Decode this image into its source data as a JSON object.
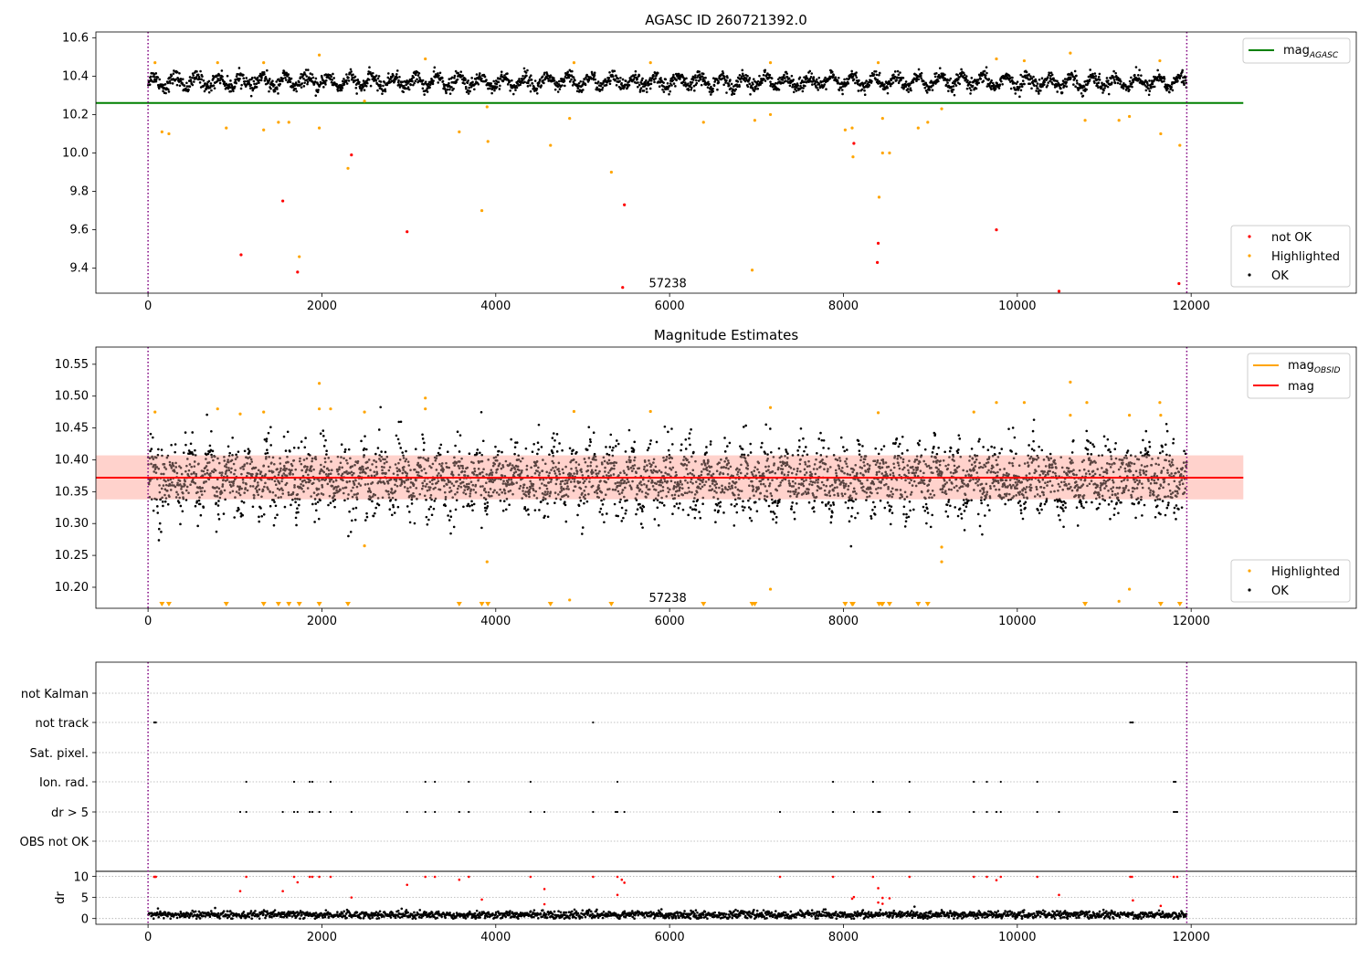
{
  "colors": {
    "ok": "#000000",
    "highlighted": "#ffa500",
    "not_ok": "#ff0000",
    "mag_agasc": "#008000",
    "mag_obsid": "#ffa500",
    "mag": "#ff0000",
    "band": "#ffc0b8",
    "dotted_vline": "#800080",
    "grid": "#b0b0b0",
    "axis": "#000000"
  },
  "chart_data": [
    {
      "type": "scatter",
      "title": "AGASC ID 260721392.0",
      "xlim": [
        -600,
        13900
      ],
      "ylim": [
        9.27,
        10.63
      ],
      "x_ticks": [
        0,
        2000,
        4000,
        6000,
        8000,
        10000,
        12000
      ],
      "x_tick_labels": [
        "0",
        "2000",
        "4000",
        "6000",
        "8000",
        "10000",
        "12000"
      ],
      "y_ticks": [
        9.4,
        9.6,
        9.8,
        10.0,
        10.2,
        10.4,
        10.6
      ],
      "y_tick_labels": [
        "9.4",
        "9.6",
        "9.8",
        "10.0",
        "10.2",
        "10.4",
        "10.6"
      ],
      "vlines": [
        0,
        11950
      ],
      "annotation": {
        "text": "57238",
        "x": 6000,
        "y": 9.32
      },
      "hlines": [
        {
          "name": "mag_AGASC",
          "y": 10.26,
          "x0": -600,
          "x1": 12600
        }
      ],
      "ok_band": {
        "center": 10.37,
        "amplitude": 0.07
      },
      "n_ok_points": 2600,
      "highlighted": [
        [
          160,
          10.11
        ],
        [
          240,
          10.1
        ],
        [
          900,
          10.13
        ],
        [
          1330,
          10.12
        ],
        [
          1500,
          10.16
        ],
        [
          1620,
          10.16
        ],
        [
          1970,
          10.13
        ],
        [
          2300,
          9.92
        ],
        [
          1740,
          9.46
        ],
        [
          3580,
          10.11
        ],
        [
          3840,
          9.7
        ],
        [
          3910,
          10.06
        ],
        [
          3900,
          10.24
        ],
        [
          4630,
          10.04
        ],
        [
          4850,
          10.18
        ],
        [
          5330,
          9.9
        ],
        [
          6390,
          10.16
        ],
        [
          6950,
          9.39
        ],
        [
          6980,
          10.17
        ],
        [
          7160,
          10.2
        ],
        [
          8020,
          10.12
        ],
        [
          8110,
          9.98
        ],
        [
          8100,
          10.13
        ],
        [
          8410,
          9.77
        ],
        [
          8450,
          10.18
        ],
        [
          8450,
          10.0
        ],
        [
          8530,
          10.0
        ],
        [
          8860,
          10.13
        ],
        [
          8970,
          10.16
        ],
        [
          9130,
          10.23
        ],
        [
          10780,
          10.17
        ],
        [
          11170,
          10.17
        ],
        [
          11290,
          10.19
        ],
        [
          11650,
          10.1
        ],
        [
          11870,
          10.04
        ],
        [
          80,
          10.47
        ],
        [
          800,
          10.47
        ],
        [
          1330,
          10.47
        ],
        [
          1970,
          10.51
        ],
        [
          3190,
          10.49
        ],
        [
          4900,
          10.47
        ],
        [
          5780,
          10.47
        ],
        [
          7160,
          10.47
        ],
        [
          8400,
          10.47
        ],
        [
          9760,
          10.49
        ],
        [
          10080,
          10.48
        ],
        [
          10610,
          10.52
        ],
        [
          11640,
          10.48
        ],
        [
          2490,
          10.27
        ]
      ],
      "not_ok": [
        [
          1070,
          9.47
        ],
        [
          1550,
          9.75
        ],
        [
          1720,
          9.38
        ],
        [
          2340,
          9.99
        ],
        [
          2980,
          9.59
        ],
        [
          5460,
          9.3
        ],
        [
          5480,
          9.73
        ],
        [
          8120,
          10.05
        ],
        [
          8400,
          9.53
        ],
        [
          8390,
          9.43
        ],
        [
          9760,
          9.6
        ],
        [
          10480,
          9.28
        ],
        [
          11860,
          9.32
        ]
      ],
      "legend_lines": [
        {
          "label": "mag",
          "sub": "AGASC"
        }
      ],
      "legend_points": [
        "not OK",
        "Highlighted",
        "OK"
      ]
    },
    {
      "type": "scatter",
      "title": "Magnitude Estimates",
      "xlim": [
        -600,
        13900
      ],
      "ylim": [
        10.167,
        10.577
      ],
      "x_ticks": [
        0,
        2000,
        4000,
        6000,
        8000,
        10000,
        12000
      ],
      "x_tick_labels": [
        "0",
        "2000",
        "4000",
        "6000",
        "8000",
        "10000",
        "12000"
      ],
      "y_ticks": [
        10.2,
        10.25,
        10.3,
        10.35,
        10.4,
        10.45,
        10.5,
        10.55
      ],
      "y_tick_labels": [
        "10.20",
        "10.25",
        "10.30",
        "10.35",
        "10.40",
        "10.45",
        "10.50",
        "10.55"
      ],
      "vlines": [
        0,
        11950
      ],
      "annotation": {
        "text": "57238",
        "x": 6000,
        "y": 10.183
      },
      "mag": 10.372,
      "mag_band": [
        10.338,
        10.407
      ],
      "mag_line_x": [
        -600,
        12600
      ],
      "ok_band": {
        "center": 10.37,
        "amplitude": 0.045
      },
      "n_ok_points": 3800,
      "highlighted": [
        [
          80,
          10.475
        ],
        [
          800,
          10.48
        ],
        [
          1330,
          10.475
        ],
        [
          1970,
          10.52
        ],
        [
          1970,
          10.48
        ],
        [
          2490,
          10.475
        ],
        [
          2490,
          10.265
        ],
        [
          3190,
          10.497
        ],
        [
          3190,
          10.48
        ],
        [
          3900,
          10.24
        ],
        [
          4850,
          10.18
        ],
        [
          4900,
          10.476
        ],
        [
          5780,
          10.476
        ],
        [
          7160,
          10.482
        ],
        [
          7160,
          10.197
        ],
        [
          8400,
          10.474
        ],
        [
          9130,
          10.263
        ],
        [
          9130,
          10.24
        ],
        [
          9500,
          10.475
        ],
        [
          9760,
          10.49
        ],
        [
          10080,
          10.49
        ],
        [
          10610,
          10.522
        ],
        [
          10610,
          10.47
        ],
        [
          10800,
          10.49
        ],
        [
          11170,
          10.178
        ],
        [
          11290,
          10.197
        ],
        [
          11290,
          10.47
        ],
        [
          11640,
          10.49
        ],
        [
          11650,
          10.47
        ],
        [
          2100,
          10.48
        ],
        [
          1060,
          10.472
        ]
      ],
      "floor_markers": [
        160,
        240,
        900,
        1330,
        1500,
        1620,
        1740,
        1970,
        2300,
        3580,
        3840,
        3910,
        4630,
        5330,
        6390,
        6950,
        6980,
        8020,
        8110,
        8100,
        8410,
        8450,
        8530,
        8860,
        8970,
        10780,
        11650,
        11870,
        8440
      ],
      "legend_lines": [
        {
          "label": "mag",
          "sub": "OBSID"
        },
        {
          "label": "mag",
          "sub": ""
        }
      ],
      "legend_points": [
        "Highlighted",
        "OK"
      ]
    },
    {
      "type": "scatter",
      "xlim": [
        -600,
        13900
      ],
      "x_ticks": [
        0,
        2000,
        4000,
        6000,
        8000,
        10000,
        12000
      ],
      "x_tick_labels": [
        "0",
        "2000",
        "4000",
        "6000",
        "8000",
        "10000",
        "12000"
      ],
      "vlines": [
        0,
        11950
      ],
      "flag_rows": [
        "not Kalman",
        "not track",
        "Sat. pixel.",
        "Ion. rad.",
        "dr > 5",
        "OBS not OK"
      ],
      "flag_points": {
        "not Kalman": [],
        "not track": [
          70,
          80,
          90,
          5120,
          11300,
          11320,
          11330
        ],
        "Sat. pixel.": [],
        "Ion. rad.": [
          1130,
          1680,
          1860,
          1890,
          2100,
          3190,
          3300,
          3690,
          4400,
          5400,
          7880,
          8340,
          8760,
          9500,
          9650,
          9810,
          10230,
          11800,
          11820
        ],
        "dr > 5": [
          1060,
          1130,
          1550,
          1680,
          1720,
          1860,
          1890,
          1970,
          2100,
          2340,
          2980,
          3190,
          3300,
          3580,
          3690,
          4400,
          4560,
          5120,
          5380,
          5400,
          5480,
          7270,
          7880,
          8120,
          8340,
          8400,
          8420,
          8760,
          9500,
          9650,
          9760,
          9810,
          10230,
          10480,
          11800,
          11820,
          11840
        ],
        "OBS not OK": []
      },
      "dr_ylim": [
        -0.5,
        11.2
      ],
      "dr_ticks": [
        0,
        5,
        10
      ],
      "dr_tick_labels": [
        "0",
        "5",
        "10"
      ],
      "dr_ylabel": "dr",
      "dr_threshold": 10.5,
      "dr_ok_band": {
        "center": 0.9,
        "amplitude": 0.7
      },
      "n_dr_points": 2000,
      "dr_red_points": [
        [
          70,
          9.9
        ],
        [
          80,
          9.9
        ],
        [
          90,
          9.9
        ],
        [
          1060,
          6.5
        ],
        [
          1130,
          9.9
        ],
        [
          1550,
          6.5
        ],
        [
          1680,
          9.9
        ],
        [
          1720,
          8.6
        ],
        [
          1860,
          9.9
        ],
        [
          1890,
          9.9
        ],
        [
          1970,
          9.9
        ],
        [
          2100,
          9.9
        ],
        [
          2340,
          5.0
        ],
        [
          2980,
          8.0
        ],
        [
          3190,
          9.9
        ],
        [
          3300,
          9.9
        ],
        [
          3580,
          9.2
        ],
        [
          3690,
          9.9
        ],
        [
          3840,
          4.5
        ],
        [
          4400,
          9.9
        ],
        [
          4560,
          7.0
        ],
        [
          4560,
          3.4
        ],
        [
          5120,
          9.9
        ],
        [
          5400,
          9.9
        ],
        [
          5400,
          5.6
        ],
        [
          5450,
          9.2
        ],
        [
          5480,
          8.5
        ],
        [
          7270,
          9.9
        ],
        [
          7880,
          9.9
        ],
        [
          8120,
          5.1
        ],
        [
          8100,
          4.7
        ],
        [
          8340,
          9.9
        ],
        [
          8400,
          7.2
        ],
        [
          8400,
          3.8
        ],
        [
          8450,
          4.9
        ],
        [
          8450,
          3.5
        ],
        [
          8530,
          4.8
        ],
        [
          8760,
          9.9
        ],
        [
          9500,
          9.9
        ],
        [
          9650,
          9.9
        ],
        [
          9760,
          9.1
        ],
        [
          9810,
          9.9
        ],
        [
          10230,
          9.9
        ],
        [
          10480,
          5.6
        ],
        [
          11300,
          9.9
        ],
        [
          11320,
          9.9
        ],
        [
          11330,
          4.3
        ],
        [
          11650,
          3.0
        ],
        [
          11800,
          9.9
        ],
        [
          11840,
          9.9
        ]
      ]
    }
  ]
}
